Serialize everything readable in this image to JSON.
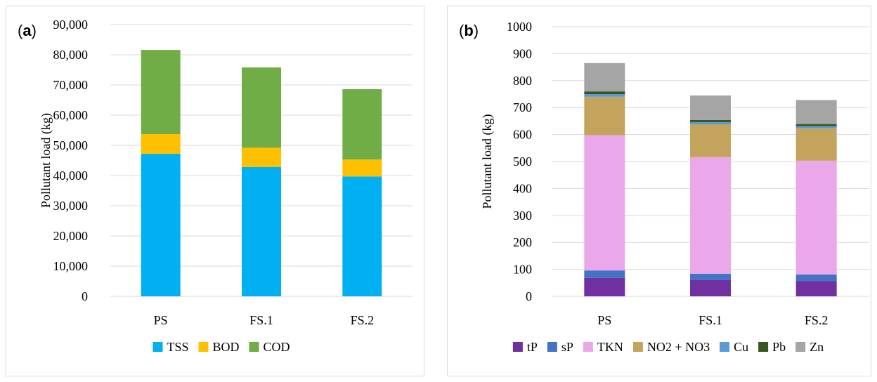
{
  "chart_data": [
    {
      "panel_label": "a",
      "type": "bar",
      "stacked": true,
      "categories": [
        "PS",
        "FS.1",
        "FS.2"
      ],
      "ylabel": "Pollutant load (kg)",
      "xlabel": "",
      "ylim": [
        0,
        90000
      ],
      "yticks": [
        0,
        10000,
        20000,
        30000,
        40000,
        50000,
        60000,
        70000,
        80000,
        90000
      ],
      "ytick_labels": [
        "0",
        "10,000",
        "20,000",
        "30,000",
        "40,000",
        "50,000",
        "60,000",
        "70,000",
        "80,000",
        "90,000"
      ],
      "grid": true,
      "legend_position": "bottom",
      "series": [
        {
          "name": "TSS",
          "color": "#00b0f0",
          "values": [
            47200,
            42800,
            39700
          ]
        },
        {
          "name": "BOD",
          "color": "#ffc000",
          "values": [
            6500,
            6400,
            5600
          ]
        },
        {
          "name": "COD",
          "color": "#70ad47",
          "values": [
            27900,
            26600,
            23300
          ]
        }
      ]
    },
    {
      "panel_label": "b",
      "type": "bar",
      "stacked": true,
      "categories": [
        "PS",
        "FS.1",
        "FS.2"
      ],
      "ylabel": "Pollutant load (kg)",
      "xlabel": "",
      "ylim": [
        0,
        1000
      ],
      "yticks": [
        0,
        100,
        200,
        300,
        400,
        500,
        600,
        700,
        800,
        900,
        1000
      ],
      "ytick_labels": [
        "0",
        "100",
        "200",
        "300",
        "400",
        "500",
        "600",
        "700",
        "800",
        "900",
        "1000"
      ],
      "grid": true,
      "legend_position": "bottom",
      "series": [
        {
          "name": "tP",
          "color": "#7030a0",
          "values": [
            68,
            60,
            57
          ]
        },
        {
          "name": "sP",
          "color": "#4472c4",
          "values": [
            28,
            24,
            24
          ]
        },
        {
          "name": "TKN",
          "color": "#eaa8ea",
          "values": [
            502,
            432,
            422
          ]
        },
        {
          "name": "NO2 + NO3",
          "color": "#c4a45c",
          "values": [
            142,
            122,
            120
          ]
        },
        {
          "name": "Cu",
          "color": "#5b9bd5",
          "values": [
            10,
            8,
            8
          ]
        },
        {
          "name": "Pb",
          "color": "#375623",
          "values": [
            10,
            8,
            8
          ]
        },
        {
          "name": "Zn",
          "color": "#a5a5a5",
          "values": [
            105,
            91,
            89
          ]
        }
      ]
    }
  ]
}
